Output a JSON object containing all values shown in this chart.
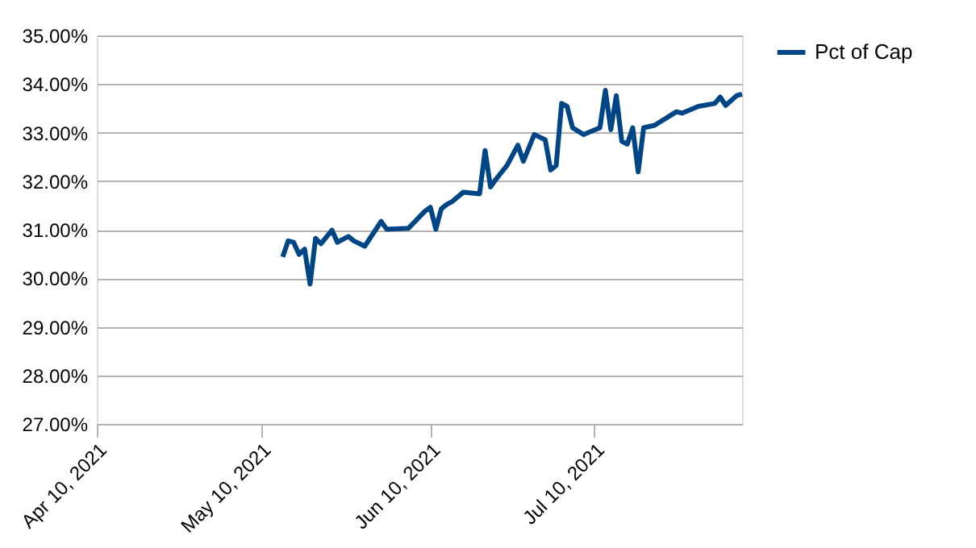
{
  "chart_data": {
    "type": "line",
    "x": [
      "2021-05-14",
      "2021-05-15",
      "2021-05-16",
      "2021-05-17",
      "2021-05-18",
      "2021-05-19",
      "2021-05-20",
      "2021-05-21",
      "2021-05-23",
      "2021-05-24",
      "2021-05-26",
      "2021-05-27",
      "2021-05-29",
      "2021-06-01",
      "2021-06-02",
      "2021-06-06",
      "2021-06-09",
      "2021-06-10",
      "2021-06-11",
      "2021-06-12",
      "2021-06-13",
      "2021-06-14",
      "2021-06-16",
      "2021-06-19",
      "2021-06-20",
      "2021-06-21",
      "2021-06-22",
      "2021-06-24",
      "2021-06-26",
      "2021-06-27",
      "2021-06-29",
      "2021-07-01",
      "2021-07-02",
      "2021-07-03",
      "2021-07-04",
      "2021-07-05",
      "2021-07-06",
      "2021-07-08",
      "2021-07-11",
      "2021-07-12",
      "2021-07-13",
      "2021-07-14",
      "2021-07-15",
      "2021-07-16",
      "2021-07-17",
      "2021-07-18",
      "2021-07-19",
      "2021-07-21",
      "2021-07-25",
      "2021-07-26",
      "2021-07-29",
      "2021-08-01",
      "2021-08-02",
      "2021-08-03",
      "2021-08-05",
      "2021-08-06"
    ],
    "series": [
      {
        "name": "Pct of Cap",
        "color": "#004586",
        "values": [
          30.44,
          30.77,
          30.74,
          30.49,
          30.6,
          29.88,
          30.82,
          30.71,
          30.99,
          30.74,
          30.86,
          30.77,
          30.66,
          31.17,
          31.01,
          31.03,
          31.38,
          31.46,
          31.01,
          31.43,
          31.52,
          31.58,
          31.77,
          31.74,
          32.63,
          31.88,
          32.04,
          32.32,
          32.74,
          32.41,
          32.96,
          32.85,
          32.23,
          32.32,
          33.6,
          33.54,
          33.1,
          32.96,
          33.1,
          33.87,
          33.06,
          33.76,
          32.82,
          32.76,
          33.1,
          32.19,
          33.1,
          33.15,
          33.43,
          33.4,
          33.54,
          33.6,
          33.73,
          33.56,
          33.76,
          33.79
        ]
      }
    ],
    "xlim": [
      "2021-04-10",
      "2021-08-06"
    ],
    "xticks": [
      {
        "value": "2021-04-10",
        "label": "Apr 10, 2021"
      },
      {
        "value": "2021-05-10",
        "label": "May 10, 2021"
      },
      {
        "value": "2021-06-10",
        "label": "Jun 10, 2021"
      },
      {
        "value": "2021-07-10",
        "label": "Jul 10, 2021"
      }
    ],
    "ylim": [
      27,
      35
    ],
    "yticks": [
      {
        "value": 27,
        "label": "27.00%"
      },
      {
        "value": 28,
        "label": "28.00%"
      },
      {
        "value": 29,
        "label": "29.00%"
      },
      {
        "value": 30,
        "label": "30.00%"
      },
      {
        "value": 31,
        "label": "31.00%"
      },
      {
        "value": 32,
        "label": "32.00%"
      },
      {
        "value": 33,
        "label": "33.00%"
      },
      {
        "value": 34,
        "label": "34.00%"
      },
      {
        "value": 35,
        "label": "35.00%"
      }
    ],
    "grid": "y",
    "legend": "right",
    "marker": "none",
    "line_style": "solid"
  }
}
